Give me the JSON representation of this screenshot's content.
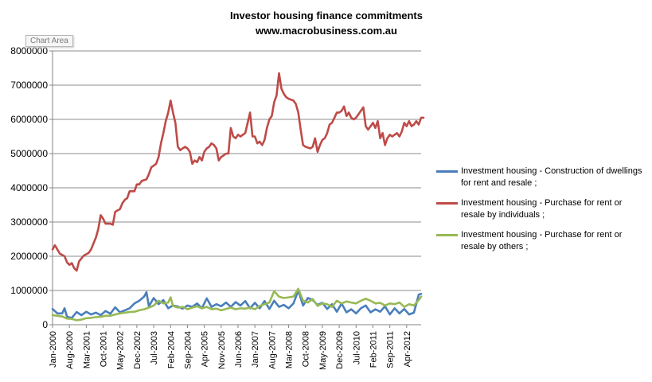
{
  "tooltip": "Chart Area",
  "chart_data": {
    "type": "line",
    "title": "Investor housing finance commitments",
    "subtitle": "www.macrobusiness.com.au",
    "xlabel": "",
    "ylabel": "",
    "ylim": [
      0,
      8000000
    ],
    "yticks": [
      "0",
      "1000000",
      "2000000",
      "3000000",
      "4000000",
      "5000000",
      "6000000",
      "7000000",
      "8000000"
    ],
    "x_tick_labels": [
      "Jan-2000",
      "Aug-2000",
      "Mar-2001",
      "Oct-2001",
      "May-2002",
      "Dec-2002",
      "Jul-2003",
      "Feb-2004",
      "Sep-2004",
      "Apr-2005",
      "Nov-2005",
      "Jun-2006",
      "Jan-2007",
      "Aug-2007",
      "Mar-2008",
      "Oct-2008",
      "May-2009",
      "Dec-2009",
      "Jul-2010",
      "Feb-2011",
      "Sep-2011",
      "Apr-2012"
    ],
    "x_range_months": [
      0,
      153
    ],
    "grid": "horizontal",
    "legend_position": "right",
    "series": [
      {
        "name": "Investment housing - Construction of dwellings for rent and resale ;",
        "color": "#4a7ebb",
        "points": [
          [
            0,
            460000
          ],
          [
            2,
            330000
          ],
          [
            4,
            330000
          ],
          [
            5,
            480000
          ],
          [
            6,
            230000
          ],
          [
            8,
            200000
          ],
          [
            10,
            370000
          ],
          [
            12,
            280000
          ],
          [
            14,
            380000
          ],
          [
            16,
            300000
          ],
          [
            18,
            350000
          ],
          [
            20,
            280000
          ],
          [
            22,
            400000
          ],
          [
            24,
            320000
          ],
          [
            26,
            510000
          ],
          [
            28,
            360000
          ],
          [
            30,
            420000
          ],
          [
            32,
            480000
          ],
          [
            34,
            620000
          ],
          [
            36,
            700000
          ],
          [
            38,
            820000
          ],
          [
            39,
            950000
          ],
          [
            40,
            540000
          ],
          [
            42,
            780000
          ],
          [
            44,
            600000
          ],
          [
            46,
            720000
          ],
          [
            48,
            480000
          ],
          [
            50,
            560000
          ],
          [
            52,
            530000
          ],
          [
            54,
            470000
          ],
          [
            56,
            560000
          ],
          [
            58,
            520000
          ],
          [
            60,
            620000
          ],
          [
            62,
            480000
          ],
          [
            64,
            770000
          ],
          [
            66,
            520000
          ],
          [
            68,
            600000
          ],
          [
            70,
            540000
          ],
          [
            72,
            650000
          ],
          [
            74,
            520000
          ],
          [
            76,
            660000
          ],
          [
            78,
            560000
          ],
          [
            80,
            690000
          ],
          [
            82,
            480000
          ],
          [
            84,
            640000
          ],
          [
            86,
            480000
          ],
          [
            88,
            690000
          ],
          [
            90,
            460000
          ],
          [
            92,
            700000
          ],
          [
            94,
            520000
          ],
          [
            96,
            580000
          ],
          [
            98,
            480000
          ],
          [
            100,
            620000
          ],
          [
            102,
            1000000
          ],
          [
            104,
            560000
          ],
          [
            106,
            780000
          ],
          [
            108,
            720000
          ],
          [
            110,
            580000
          ],
          [
            112,
            640000
          ],
          [
            114,
            460000
          ],
          [
            116,
            600000
          ],
          [
            118,
            380000
          ],
          [
            120,
            620000
          ],
          [
            122,
            360000
          ],
          [
            124,
            450000
          ],
          [
            126,
            330000
          ],
          [
            128,
            480000
          ],
          [
            130,
            560000
          ],
          [
            132,
            360000
          ],
          [
            134,
            450000
          ],
          [
            136,
            380000
          ],
          [
            138,
            540000
          ],
          [
            140,
            300000
          ],
          [
            142,
            480000
          ],
          [
            144,
            330000
          ],
          [
            146,
            460000
          ],
          [
            148,
            300000
          ],
          [
            150,
            350000
          ],
          [
            152,
            880000
          ],
          [
            153,
            900000
          ]
        ]
      },
      {
        "name": "Investment housing - Purchase for rent or resale by individuals ;",
        "color": "#be4b48",
        "points": [
          [
            0,
            2200000
          ],
          [
            1,
            2320000
          ],
          [
            3,
            2080000
          ],
          [
            5,
            2000000
          ],
          [
            6,
            1820000
          ],
          [
            7,
            1750000
          ],
          [
            8,
            1800000
          ],
          [
            9,
            1650000
          ],
          [
            10,
            1580000
          ],
          [
            11,
            1850000
          ],
          [
            13,
            2020000
          ],
          [
            15,
            2100000
          ],
          [
            16,
            2200000
          ],
          [
            18,
            2550000
          ],
          [
            19,
            2800000
          ],
          [
            20,
            3200000
          ],
          [
            21,
            3100000
          ],
          [
            22,
            2950000
          ],
          [
            24,
            2950000
          ],
          [
            25,
            2920000
          ],
          [
            26,
            3300000
          ],
          [
            28,
            3380000
          ],
          [
            29,
            3550000
          ],
          [
            30,
            3650000
          ],
          [
            31,
            3700000
          ],
          [
            32,
            3900000
          ],
          [
            34,
            3900000
          ],
          [
            35,
            4100000
          ],
          [
            36,
            4100000
          ],
          [
            37,
            4200000
          ],
          [
            39,
            4250000
          ],
          [
            40,
            4400000
          ],
          [
            41,
            4600000
          ],
          [
            43,
            4700000
          ],
          [
            44,
            4900000
          ],
          [
            45,
            5300000
          ],
          [
            46,
            5600000
          ],
          [
            47,
            5950000
          ],
          [
            48,
            6200000
          ],
          [
            49,
            6550000
          ],
          [
            50,
            6200000
          ],
          [
            51,
            5900000
          ],
          [
            52,
            5200000
          ],
          [
            53,
            5100000
          ],
          [
            54,
            5150000
          ],
          [
            55,
            5200000
          ],
          [
            56,
            5150000
          ],
          [
            57,
            5050000
          ],
          [
            58,
            4700000
          ],
          [
            59,
            4800000
          ],
          [
            60,
            4750000
          ],
          [
            61,
            4900000
          ],
          [
            62,
            4800000
          ],
          [
            63,
            5050000
          ],
          [
            64,
            5150000
          ],
          [
            65,
            5200000
          ],
          [
            66,
            5300000
          ],
          [
            67,
            5250000
          ],
          [
            68,
            5150000
          ],
          [
            69,
            4800000
          ],
          [
            70,
            4900000
          ],
          [
            71,
            4950000
          ],
          [
            72,
            5000000
          ],
          [
            73,
            5000000
          ],
          [
            74,
            5750000
          ],
          [
            75,
            5500000
          ],
          [
            76,
            5450000
          ],
          [
            77,
            5550000
          ],
          [
            78,
            5500000
          ],
          [
            80,
            5600000
          ],
          [
            81,
            5900000
          ],
          [
            82,
            6200000
          ],
          [
            83,
            5500000
          ],
          [
            84,
            5500000
          ],
          [
            85,
            5300000
          ],
          [
            86,
            5350000
          ],
          [
            87,
            5250000
          ],
          [
            88,
            5400000
          ],
          [
            89,
            5750000
          ],
          [
            90,
            6000000
          ],
          [
            91,
            6100000
          ],
          [
            92,
            6500000
          ],
          [
            93,
            6700000
          ],
          [
            94,
            7350000
          ],
          [
            95,
            6900000
          ],
          [
            96,
            6750000
          ],
          [
            97,
            6650000
          ],
          [
            98,
            6600000
          ],
          [
            100,
            6550000
          ],
          [
            101,
            6450000
          ],
          [
            102,
            6200000
          ],
          [
            103,
            5700000
          ],
          [
            104,
            5250000
          ],
          [
            105,
            5200000
          ],
          [
            107,
            5150000
          ],
          [
            108,
            5200000
          ],
          [
            109,
            5450000
          ],
          [
            110,
            5050000
          ],
          [
            111,
            5250000
          ],
          [
            112,
            5400000
          ],
          [
            113,
            5450000
          ],
          [
            114,
            5600000
          ],
          [
            115,
            5850000
          ],
          [
            116,
            5900000
          ],
          [
            117,
            6050000
          ],
          [
            118,
            6200000
          ],
          [
            119,
            6200000
          ],
          [
            120,
            6250000
          ],
          [
            121,
            6380000
          ],
          [
            122,
            6100000
          ],
          [
            123,
            6200000
          ],
          [
            124,
            6050000
          ],
          [
            125,
            6000000
          ],
          [
            126,
            6050000
          ],
          [
            127,
            6150000
          ],
          [
            128,
            6250000
          ],
          [
            129,
            6350000
          ],
          [
            130,
            5800000
          ],
          [
            131,
            5700000
          ],
          [
            132,
            5800000
          ],
          [
            133,
            5900000
          ],
          [
            134,
            5750000
          ],
          [
            135,
            5950000
          ],
          [
            136,
            5450000
          ],
          [
            137,
            5600000
          ],
          [
            138,
            5250000
          ],
          [
            139,
            5450000
          ],
          [
            140,
            5550000
          ],
          [
            141,
            5500000
          ],
          [
            142,
            5550000
          ],
          [
            143,
            5600000
          ],
          [
            144,
            5500000
          ],
          [
            145,
            5650000
          ],
          [
            146,
            5900000
          ],
          [
            147,
            5800000
          ],
          [
            148,
            5950000
          ],
          [
            149,
            5800000
          ],
          [
            150,
            5850000
          ],
          [
            151,
            5950000
          ],
          [
            152,
            5850000
          ],
          [
            153,
            6050000
          ],
          [
            154,
            6050000
          ]
        ]
      },
      {
        "name": "Investment housing - Purchase for rent or resale by others ;",
        "color": "#98b954",
        "points": [
          [
            0,
            280000
          ],
          [
            2,
            260000
          ],
          [
            4,
            240000
          ],
          [
            6,
            180000
          ],
          [
            8,
            170000
          ],
          [
            10,
            130000
          ],
          [
            12,
            150000
          ],
          [
            14,
            190000
          ],
          [
            16,
            200000
          ],
          [
            18,
            220000
          ],
          [
            20,
            230000
          ],
          [
            22,
            260000
          ],
          [
            24,
            260000
          ],
          [
            26,
            300000
          ],
          [
            28,
            330000
          ],
          [
            30,
            350000
          ],
          [
            32,
            370000
          ],
          [
            34,
            380000
          ],
          [
            36,
            420000
          ],
          [
            38,
            450000
          ],
          [
            40,
            500000
          ],
          [
            42,
            560000
          ],
          [
            44,
            700000
          ],
          [
            46,
            620000
          ],
          [
            48,
            650000
          ],
          [
            49,
            800000
          ],
          [
            50,
            550000
          ],
          [
            52,
            500000
          ],
          [
            54,
            520000
          ],
          [
            56,
            450000
          ],
          [
            58,
            500000
          ],
          [
            60,
            540000
          ],
          [
            62,
            480000
          ],
          [
            64,
            520000
          ],
          [
            66,
            450000
          ],
          [
            68,
            470000
          ],
          [
            70,
            420000
          ],
          [
            72,
            460000
          ],
          [
            74,
            500000
          ],
          [
            76,
            450000
          ],
          [
            78,
            480000
          ],
          [
            80,
            470000
          ],
          [
            82,
            500000
          ],
          [
            84,
            450000
          ],
          [
            86,
            550000
          ],
          [
            88,
            600000
          ],
          [
            90,
            650000
          ],
          [
            92,
            980000
          ],
          [
            94,
            820000
          ],
          [
            96,
            780000
          ],
          [
            98,
            800000
          ],
          [
            100,
            820000
          ],
          [
            102,
            1050000
          ],
          [
            104,
            700000
          ],
          [
            106,
            650000
          ],
          [
            108,
            750000
          ],
          [
            110,
            550000
          ],
          [
            112,
            620000
          ],
          [
            114,
            600000
          ],
          [
            116,
            520000
          ],
          [
            118,
            700000
          ],
          [
            120,
            620000
          ],
          [
            122,
            680000
          ],
          [
            124,
            650000
          ],
          [
            126,
            620000
          ],
          [
            128,
            700000
          ],
          [
            130,
            760000
          ],
          [
            132,
            700000
          ],
          [
            134,
            620000
          ],
          [
            136,
            640000
          ],
          [
            138,
            560000
          ],
          [
            140,
            620000
          ],
          [
            142,
            600000
          ],
          [
            144,
            650000
          ],
          [
            146,
            520000
          ],
          [
            148,
            600000
          ],
          [
            150,
            560000
          ],
          [
            152,
            720000
          ],
          [
            153,
            820000
          ]
        ]
      }
    ]
  }
}
